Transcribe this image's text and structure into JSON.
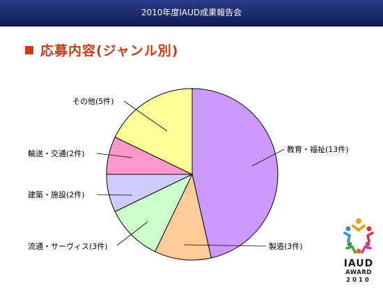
{
  "header": {
    "title": "2010年度IAUD成果報告会"
  },
  "heading": {
    "title": "応募内容(ジャンル別)"
  },
  "chart_data": {
    "type": "pie",
    "slices": [
      {
        "label": "教育・福祉(13件)",
        "value": 13,
        "color": "#cc99ff"
      },
      {
        "label": "製造(3件)",
        "value": 3,
        "color": "#ffcc99"
      },
      {
        "label": "流通・サーヴィス(3件)",
        "value": 3,
        "color": "#ccffcc"
      },
      {
        "label": "建築・施設(2件)",
        "value": 2,
        "color": "#ccccff"
      },
      {
        "label": "輸送・交通(2件)",
        "value": 2,
        "color": "#ff99cc"
      },
      {
        "label": "その他(5件)",
        "value": 5,
        "color": "#ffff99"
      }
    ]
  },
  "logo": {
    "line1": "IAUD",
    "line2": "AWARD",
    "line3": "2010"
  }
}
